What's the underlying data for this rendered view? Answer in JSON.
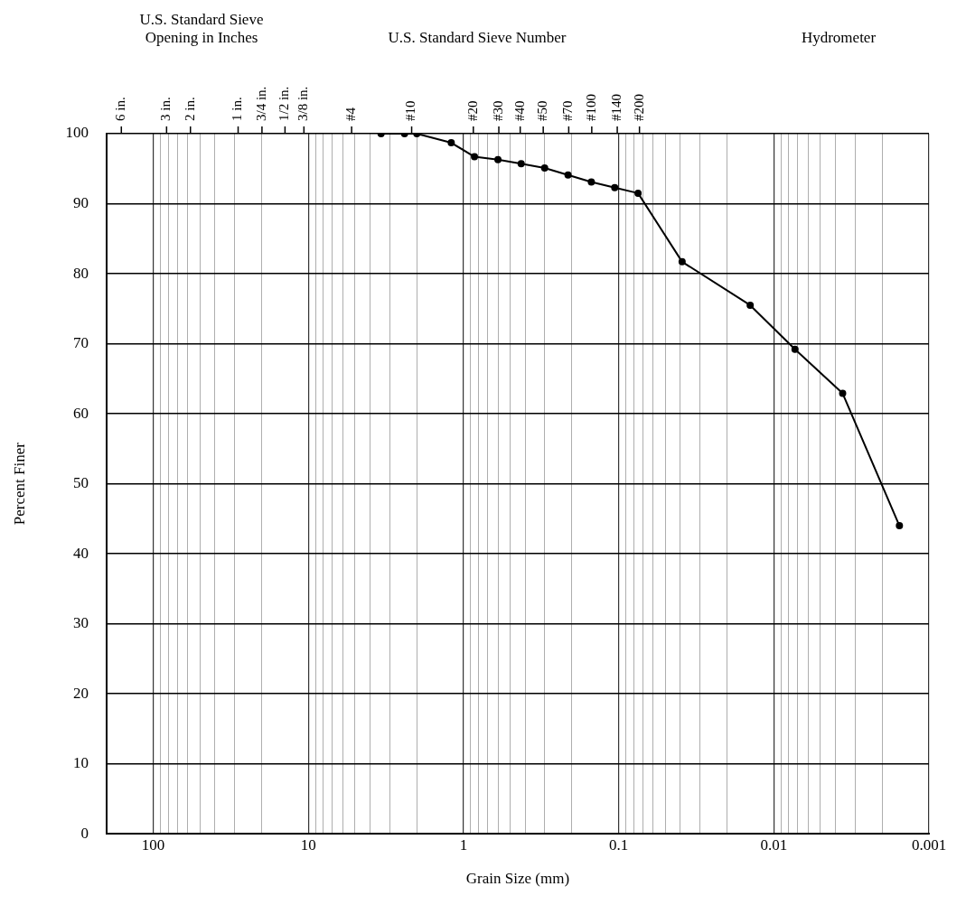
{
  "chart_data": {
    "type": "line",
    "xlabel": "Grain Size (mm)",
    "ylabel": "Percent Finer",
    "annotations": [
      "U.S. Standard Sieve Opening in Inches",
      "U.S. Standard Sieve Number",
      "Hydrometer",
      "6 in.",
      "3 in.",
      "2 in.",
      "1 in.",
      "3/4 in.",
      "1/2 in.",
      "3/8 in.",
      "#4",
      "#10",
      "#20",
      "#30",
      "#40",
      "#50",
      "#70",
      "#100",
      "#140",
      "#200"
    ],
    "log": "x",
    "grid": true,
    "legend": false,
    "marker": "circle",
    "line_style": "solid",
    "xlim": [
      200,
      0.001
    ],
    "xticks": [
      {
        "value": 200,
        "label": null
      },
      100,
      {
        "value": 90,
        "label": null
      },
      {
        "value": 80,
        "label": null
      },
      {
        "value": 70,
        "label": null
      },
      {
        "value": 60,
        "label": null
      },
      {
        "value": 50,
        "label": null
      },
      {
        "value": 40,
        "label": null
      },
      {
        "value": 30,
        "label": null
      },
      {
        "value": 20,
        "label": null
      },
      10,
      {
        "value": 9,
        "label": null
      },
      {
        "value": 8,
        "label": null
      },
      {
        "value": 7,
        "label": null
      },
      {
        "value": 6,
        "label": null
      },
      {
        "value": 5,
        "label": null
      },
      {
        "value": 4,
        "label": null
      },
      {
        "value": 3,
        "label": null
      },
      {
        "value": 2,
        "label": null
      },
      1,
      {
        "value": 0.9,
        "label": null
      },
      {
        "value": 0.8,
        "label": null
      },
      {
        "value": 0.7,
        "label": null
      },
      {
        "value": 0.6,
        "label": null
      },
      {
        "value": 0.5,
        "label": null
      },
      {
        "value": 0.4,
        "label": null
      },
      {
        "value": 0.3,
        "label": null
      },
      {
        "value": 0.2,
        "label": null
      },
      0.1,
      {
        "value": 0.09,
        "label": null
      },
      {
        "value": 0.08,
        "label": null
      },
      {
        "value": 0.07,
        "label": null
      },
      {
        "value": 0.06,
        "label": null
      },
      {
        "value": 0.05,
        "label": null
      },
      {
        "value": 0.04,
        "label": null
      },
      {
        "value": 0.03,
        "label": null
      },
      {
        "value": 0.02,
        "label": null
      },
      0.01,
      {
        "value": 0.009,
        "label": null
      },
      {
        "value": 0.008,
        "label": null
      },
      {
        "value": 0.007,
        "label": null
      },
      {
        "value": 0.006,
        "label": null
      },
      {
        "value": 0.005,
        "label": null
      },
      {
        "value": 0.004,
        "label": null
      },
      {
        "value": 0.003,
        "label": null
      },
      {
        "value": 0.002,
        "label": null
      },
      0.001
    ],
    "ylim": [
      0,
      100
    ],
    "yticks": [
      0,
      10,
      20,
      30,
      40,
      50,
      60,
      70,
      80,
      90,
      100
    ],
    "series": [
      {
        "color": "#000000",
        "x": [
          3.4,
          2.4,
          2,
          1.2,
          0.85,
          0.6,
          0.425,
          0.3,
          0.212,
          0.15,
          0.106,
          0.075,
          0.039,
          0.0142,
          0.0073,
          0.0036,
          0.00155
        ],
        "values": [
          100,
          100,
          100,
          98.7,
          96.7,
          96.3,
          95.7,
          95.1,
          94.1,
          93.1,
          92.3,
          91.5,
          81.7,
          75.5,
          69.2,
          62.9,
          44
        ]
      }
    ]
  }
}
